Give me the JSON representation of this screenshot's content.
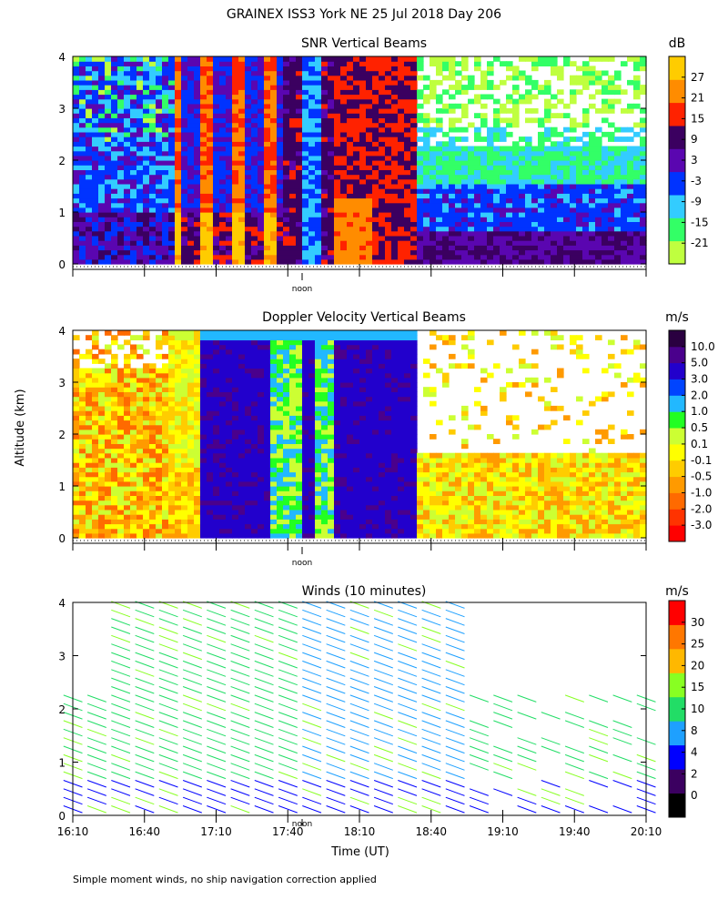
{
  "page": {
    "title": "GRAINEX ISS3 York NE  25 Jul 2018 Day 206",
    "yaxis_label": "Altitude (km)",
    "xaxis_label": "Time (UT)",
    "footnote": "Simple moment winds, no ship navigation correction applied",
    "noon_label": "noon"
  },
  "colors": {
    "snr": [
      "#bfff3f",
      "#33ff66",
      "#33ccff",
      "#0033ff",
      "#5a06b0",
      "#3b0060",
      "#ff2200",
      "#ff8c00",
      "#ffcc00"
    ],
    "doppler": [
      "#ff0000",
      "#ff3300",
      "#ff6a00",
      "#ff9a00",
      "#ffcc00",
      "#ffff00",
      "#ccff33",
      "#22ff22",
      "#22b8ff",
      "#0044ff",
      "#2200cc",
      "#4a008c",
      "#2a0040"
    ],
    "winds": [
      "#000000",
      "#3b0060",
      "#0000ff",
      "#1ea0ff",
      "#22dd66",
      "#88ff22",
      "#ffb800",
      "#ff7700",
      "#ff0000"
    ]
  },
  "chart_data": [
    {
      "type": "heatmap",
      "title": "SNR Vertical Beams",
      "unit": "dB",
      "ylim": [
        0,
        4
      ],
      "yticks": [
        "0",
        "1",
        "2",
        "3",
        "4"
      ],
      "xlim": [
        "16:10",
        "20:10"
      ],
      "colorbar_ticks": [
        "27",
        "21",
        "15",
        "9",
        "3",
        "-3",
        "-9",
        "-15",
        "-21"
      ],
      "noon_time": "17:46"
    },
    {
      "type": "heatmap",
      "title": "Doppler Velocity Vertical Beams",
      "unit": "m/s",
      "ylim": [
        0,
        4
      ],
      "yticks": [
        "0",
        "1",
        "2",
        "3",
        "4"
      ],
      "xlim": [
        "16:10",
        "20:10"
      ],
      "colorbar_ticks": [
        "10.0",
        "5.0",
        "3.0",
        "2.0",
        "1.0",
        "0.5",
        "0.1",
        "-0.1",
        "-0.5",
        "-1.0",
        "-2.0",
        "-3.0"
      ],
      "noon_time": "17:46"
    },
    {
      "type": "scatter",
      "title": "Winds (10 minutes)",
      "unit": "m/s",
      "ylim": [
        0,
        4
      ],
      "yticks": [
        "0",
        "1",
        "2",
        "3",
        "4"
      ],
      "xlim": [
        "16:10",
        "20:10"
      ],
      "xticks": [
        "16:10",
        "16:40",
        "17:10",
        "17:40",
        "18:10",
        "18:40",
        "19:10",
        "19:40",
        "20:10"
      ],
      "colorbar_ticks": [
        "30",
        "25",
        "20",
        "15",
        "10",
        "8",
        "4",
        "2",
        "0"
      ],
      "noon_time": "17:46"
    }
  ]
}
